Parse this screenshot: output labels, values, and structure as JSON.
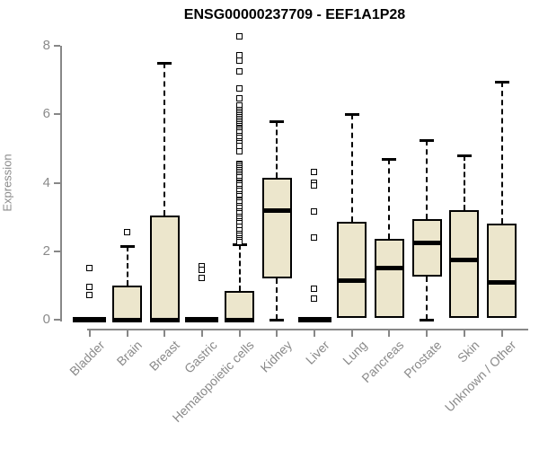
{
  "title": "ENSG00000237709 - EEF1A1P28",
  "chart_data": {
    "type": "boxplot",
    "title": "ENSG00000237709 - EEF1A1P28",
    "xlabel": "",
    "ylabel": "Expression",
    "ylim": [
      0,
      8.3
    ],
    "yticks": [
      0,
      2,
      4,
      6,
      8
    ],
    "grid": false,
    "legend": null,
    "categories": [
      "Bladder",
      "Brain",
      "Breast",
      "Gastric",
      "Hematopoietic cells",
      "Kidney",
      "Liver",
      "Lung",
      "Pancreas",
      "Prostate",
      "Skin",
      "Unknown / Other"
    ],
    "series": [
      {
        "category": "Bladder",
        "whisker_low": 0,
        "q1": 0,
        "median": 0,
        "q3": 0,
        "whisker_high": 0,
        "outliers": [
          1.5,
          0.95,
          0.7
        ]
      },
      {
        "category": "Brain",
        "whisker_low": 0,
        "q1": 0,
        "median": 0,
        "q3": 1.0,
        "whisker_high": 2.15,
        "outliers": [
          2.55
        ]
      },
      {
        "category": "Breast",
        "whisker_low": 0,
        "q1": 0,
        "median": 0,
        "q3": 3.05,
        "whisker_high": 7.5,
        "outliers": []
      },
      {
        "category": "Gastric",
        "whisker_low": 0,
        "q1": 0,
        "median": 0,
        "q3": 0,
        "whisker_high": 0,
        "outliers": [
          1.55,
          1.45,
          1.2
        ]
      },
      {
        "category": "Hematopoietic cells",
        "whisker_low": 0,
        "q1": 0,
        "median": 0,
        "q3": 0.85,
        "whisker_high": 2.2,
        "outliers": [
          8.25,
          7.7,
          7.55,
          7.25,
          6.75,
          6.45,
          6.25,
          6.1,
          6.05,
          6.0,
          5.95,
          5.9,
          5.85,
          5.8,
          5.75,
          5.7,
          5.65,
          5.6,
          5.55,
          5.5,
          5.45,
          5.35,
          5.3,
          5.2,
          5.15,
          5.05,
          4.9,
          4.55,
          4.5,
          4.45,
          4.4,
          4.35,
          4.3,
          4.25,
          4.2,
          4.15,
          4.05,
          4.0,
          3.95,
          3.9,
          3.8,
          3.75,
          3.65,
          3.6,
          3.5,
          3.45,
          3.4,
          3.3,
          3.25,
          3.15,
          3.1,
          3.0,
          2.95,
          2.85,
          2.8,
          2.7,
          2.6,
          2.5,
          2.45,
          2.35,
          2.3,
          2.25
        ]
      },
      {
        "category": "Kidney",
        "whisker_low": 0,
        "q1": 1.2,
        "median": 3.2,
        "q3": 4.15,
        "whisker_high": 5.8,
        "outliers": []
      },
      {
        "category": "Liver",
        "whisker_low": 0,
        "q1": 0,
        "median": 0,
        "q3": 0,
        "whisker_high": 0,
        "outliers": [
          4.3,
          4.0,
          3.9,
          3.15,
          2.4,
          0.9,
          0.6
        ]
      },
      {
        "category": "Lung",
        "whisker_low": 0.05,
        "q1": 0.05,
        "median": 1.15,
        "q3": 2.85,
        "whisker_high": 6.0,
        "outliers": []
      },
      {
        "category": "Pancreas",
        "whisker_low": 0.05,
        "q1": 0.05,
        "median": 1.5,
        "q3": 2.35,
        "whisker_high": 4.7,
        "outliers": []
      },
      {
        "category": "Prostate",
        "whisker_low": 0,
        "q1": 1.25,
        "median": 2.25,
        "q3": 2.95,
        "whisker_high": 5.25,
        "outliers": []
      },
      {
        "category": "Skin",
        "whisker_low": 0.05,
        "q1": 0.05,
        "median": 1.75,
        "q3": 3.2,
        "whisker_high": 4.8,
        "outliers": []
      },
      {
        "category": "Unknown / Other",
        "whisker_low": 0.05,
        "q1": 0.05,
        "median": 1.1,
        "q3": 2.8,
        "whisker_high": 6.95,
        "outliers": []
      }
    ],
    "colors": {
      "box_fill": "#ece6cc",
      "box_border": "#000000",
      "median": "#000000",
      "whisker": "#000000",
      "outlier_fill": "#ffffff",
      "axis": "#878787",
      "tick_label": "#8a8a8a",
      "title": "#000000",
      "background": "#ffffff"
    }
  }
}
